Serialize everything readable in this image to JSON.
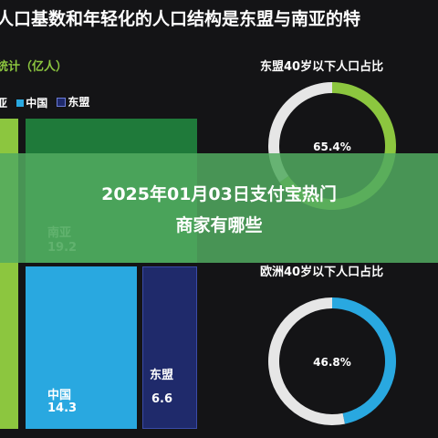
{
  "title": "人口基数和年轻化的人口结构是东盟与南亚的特",
  "left_subtitle": "统计（亿人）",
  "legend": [
    {
      "label": "亚",
      "color": "#8cc63f"
    },
    {
      "label": "中国",
      "color": "#29a8e0"
    },
    {
      "label": "东盟",
      "color": "#1f2a6b"
    }
  ],
  "banner": {
    "line1": "2025年01月03日支付宝热门",
    "line2": "商家有哪些"
  },
  "chart_data": [
    {
      "type": "bar",
      "title": "统计（亿人）",
      "ylabel": "亿人",
      "series": [
        {
          "name": "南亚",
          "value": 19.2,
          "color": "#1f7a3a"
        },
        {
          "name": "中国",
          "value": 14.3,
          "color": "#29a8e0"
        },
        {
          "name": "东盟",
          "value": 6.6,
          "color": "#1f2a6b"
        }
      ]
    },
    {
      "type": "pie",
      "title": "东盟40岁以下人口占比",
      "values": [
        65.4,
        34.6
      ],
      "label": "65.4%",
      "colors": [
        "#8cc63f",
        "#e6e6e6"
      ]
    },
    {
      "type": "pie",
      "title": "欧洲40岁以下人口占比",
      "values": [
        46.8,
        53.2
      ],
      "label": "46.8%",
      "colors": [
        "#29a8e0",
        "#e6e6e6"
      ]
    }
  ]
}
